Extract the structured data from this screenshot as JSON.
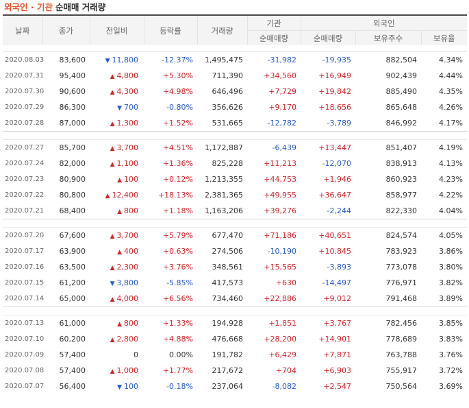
{
  "title": {
    "accent": "외국인 · 기관",
    "sub": "순매매 거래량"
  },
  "header": {
    "date": "날짜",
    "close": "종가",
    "change": "전일비",
    "rate": "등락률",
    "volume": "거래량",
    "inst_group": "기관",
    "foreign_group": "외국인",
    "inst_net": "순매매량",
    "foreign_net": "순매매량",
    "foreign_hold": "보유주수",
    "foreign_ratio": "보유율"
  },
  "colors": {
    "up": "#d0262c",
    "down": "#2559c6",
    "accent": "#e5532d"
  },
  "groups": [
    [
      {
        "date": "2020.08.03",
        "close": "83,600",
        "dir": "down",
        "change": "11,800",
        "rate": "-12.37%",
        "volume": "1,495,475",
        "inst": "-31,982",
        "foreign": "-19,935",
        "hold": "882,504",
        "ratio": "4.34%"
      },
      {
        "date": "2020.07.31",
        "close": "95,400",
        "dir": "up",
        "change": "4,800",
        "rate": "+5.30%",
        "volume": "711,390",
        "inst": "+34,560",
        "foreign": "+16,949",
        "hold": "902,439",
        "ratio": "4.44%"
      },
      {
        "date": "2020.07.30",
        "close": "90,600",
        "dir": "up",
        "change": "4,300",
        "rate": "+4.98%",
        "volume": "646,496",
        "inst": "+7,729",
        "foreign": "+19,842",
        "hold": "885,490",
        "ratio": "4.35%"
      },
      {
        "date": "2020.07.29",
        "close": "86,300",
        "dir": "down",
        "change": "700",
        "rate": "-0.80%",
        "volume": "356,626",
        "inst": "+9,170",
        "foreign": "+18,656",
        "hold": "865,648",
        "ratio": "4.26%"
      },
      {
        "date": "2020.07.28",
        "close": "87,000",
        "dir": "up",
        "change": "1,300",
        "rate": "+1.52%",
        "volume": "531,665",
        "inst": "-12,782",
        "foreign": "-3,789",
        "hold": "846,992",
        "ratio": "4.17%"
      }
    ],
    [
      {
        "date": "2020.07.27",
        "close": "85,700",
        "dir": "up",
        "change": "3,700",
        "rate": "+4.51%",
        "volume": "1,172,887",
        "inst": "-6,439",
        "foreign": "+13,447",
        "hold": "851,407",
        "ratio": "4.19%"
      },
      {
        "date": "2020.07.24",
        "close": "82,000",
        "dir": "up",
        "change": "1,100",
        "rate": "+1.36%",
        "volume": "825,228",
        "inst": "+11,213",
        "foreign": "-12,070",
        "hold": "838,913",
        "ratio": "4.13%"
      },
      {
        "date": "2020.07.23",
        "close": "80,900",
        "dir": "up",
        "change": "100",
        "rate": "+0.12%",
        "volume": "1,213,355",
        "inst": "+44,753",
        "foreign": "+1,946",
        "hold": "860,923",
        "ratio": "4.23%"
      },
      {
        "date": "2020.07.22",
        "close": "80,800",
        "dir": "up",
        "change": "12,400",
        "rate": "+18.13%",
        "volume": "2,381,365",
        "inst": "+49,955",
        "foreign": "+36,647",
        "hold": "858,977",
        "ratio": "4.22%"
      },
      {
        "date": "2020.07.21",
        "close": "68,400",
        "dir": "up",
        "change": "800",
        "rate": "+1.18%",
        "volume": "1,163,206",
        "inst": "+39,276",
        "foreign": "-2,244",
        "hold": "822,330",
        "ratio": "4.04%"
      }
    ],
    [
      {
        "date": "2020.07.20",
        "close": "67,600",
        "dir": "up",
        "change": "3,700",
        "rate": "+5.79%",
        "volume": "677,470",
        "inst": "+71,186",
        "foreign": "+40,651",
        "hold": "824,574",
        "ratio": "4.05%"
      },
      {
        "date": "2020.07.17",
        "close": "63,900",
        "dir": "up",
        "change": "400",
        "rate": "+0.63%",
        "volume": "274,506",
        "inst": "-10,190",
        "foreign": "+10,845",
        "hold": "783,923",
        "ratio": "3.86%"
      },
      {
        "date": "2020.07.16",
        "close": "63,500",
        "dir": "up",
        "change": "2,300",
        "rate": "+3.76%",
        "volume": "348,561",
        "inst": "+15,565",
        "foreign": "-3,893",
        "hold": "773,078",
        "ratio": "3.80%"
      },
      {
        "date": "2020.07.15",
        "close": "61,200",
        "dir": "down",
        "change": "3,800",
        "rate": "-5.85%",
        "volume": "417,573",
        "inst": "+630",
        "foreign": "-14,497",
        "hold": "776,971",
        "ratio": "3.82%"
      },
      {
        "date": "2020.07.14",
        "close": "65,000",
        "dir": "up",
        "change": "4,000",
        "rate": "+6.56%",
        "volume": "734,460",
        "inst": "+22,886",
        "foreign": "+9,012",
        "hold": "791,468",
        "ratio": "3.89%"
      }
    ],
    [
      {
        "date": "2020.07.13",
        "close": "61,000",
        "dir": "up",
        "change": "800",
        "rate": "+1.33%",
        "volume": "194,928",
        "inst": "+1,851",
        "foreign": "+3,767",
        "hold": "782,456",
        "ratio": "3.85%"
      },
      {
        "date": "2020.07.10",
        "close": "60,200",
        "dir": "up",
        "change": "2,800",
        "rate": "+4.88%",
        "volume": "476,668",
        "inst": "+28,200",
        "foreign": "+14,901",
        "hold": "778,689",
        "ratio": "3.83%"
      },
      {
        "date": "2020.07.09",
        "close": "57,400",
        "dir": "zero",
        "change": "0",
        "rate": "0.00%",
        "volume": "191,782",
        "inst": "+6,429",
        "foreign": "+7,871",
        "hold": "763,788",
        "ratio": "3.76%"
      },
      {
        "date": "2020.07.08",
        "close": "57,400",
        "dir": "up",
        "change": "1,000",
        "rate": "+1.77%",
        "volume": "217,672",
        "inst": "+704",
        "foreign": "+6,903",
        "hold": "755,917",
        "ratio": "3.72%"
      },
      {
        "date": "2020.07.07",
        "close": "56,400",
        "dir": "down",
        "change": "100",
        "rate": "-0.18%",
        "volume": "237,064",
        "inst": "-8,082",
        "foreign": "+2,547",
        "hold": "750,564",
        "ratio": "3.69%"
      }
    ]
  ]
}
